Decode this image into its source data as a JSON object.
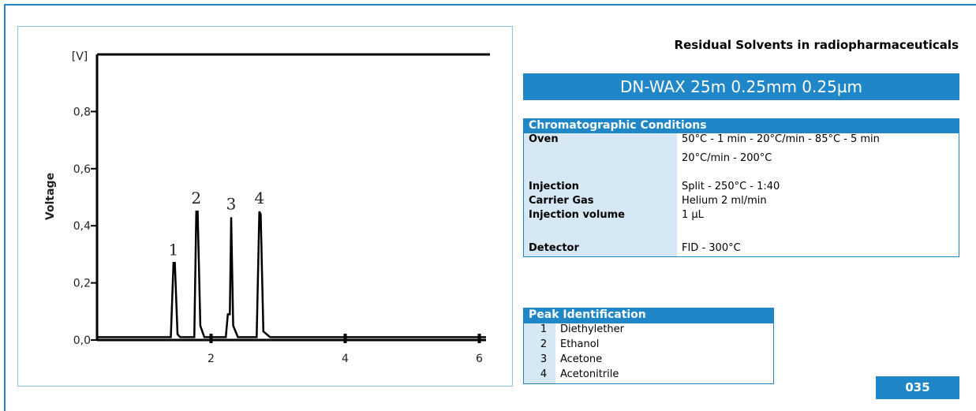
{
  "chart_data": {
    "type": "line",
    "y_unit": "[V]",
    "y_label": "Voltage",
    "x": [
      0.3,
      1.4,
      1.44,
      1.46,
      1.5,
      1.54,
      1.75,
      1.78,
      1.8,
      1.84,
      1.9,
      2.22,
      2.25,
      2.28,
      2.3,
      2.33,
      2.4,
      2.68,
      2.72,
      2.74,
      2.78,
      2.88,
      6.1
    ],
    "series": [
      {
        "color": "#000000",
        "values": [
          0.01,
          0.01,
          0.27,
          0.27,
          0.02,
          0.01,
          0.01,
          0.45,
          0.45,
          0.05,
          0.01,
          0.01,
          0.09,
          0.09,
          0.43,
          0.05,
          0.01,
          0.01,
          0.45,
          0.44,
          0.03,
          0.01,
          0.01
        ]
      }
    ],
    "annotations": [
      "1",
      "2",
      "3",
      "4"
    ],
    "xlim": [
      0.3,
      6.1
    ],
    "xticks": [
      2,
      4,
      6
    ],
    "ylim": [
      0,
      1.0
    ],
    "yticks": [
      {
        "value": 0,
        "label": "0,0"
      },
      {
        "value": 0.2,
        "label": "0,2"
      },
      {
        "value": 0.4,
        "label": "0,4"
      },
      {
        "value": 0.6,
        "label": "0,6"
      },
      {
        "value": 0.8,
        "label": "0,8"
      }
    ]
  },
  "header": {
    "title": "Residual Solvents in radiopharmaceuticals",
    "column": "DN-WAX  25m  0.25mm  0.25µm"
  },
  "conditions": {
    "title": "Chromatographic Conditions",
    "rows": [
      [
        "Oven",
        "50°C - 1 min - 20°C/min - 85°C - 5 min"
      ],
      [
        "",
        "20°C/min - 200°C"
      ],
      [
        "Injection",
        "Split - 250°C - 1:40"
      ],
      [
        "Carrier Gas",
        "Helium 2 ml/min"
      ],
      [
        "Injection volume",
        "1 µL"
      ],
      [
        "Detector",
        "FID - 300°C"
      ]
    ]
  },
  "peaks": {
    "title": "Peak Identification",
    "rows": [
      [
        "1",
        "Diethylether"
      ],
      [
        "2",
        "Ethanol"
      ],
      [
        "3",
        "Acetone"
      ],
      [
        "4",
        "Acetonitrile"
      ]
    ]
  },
  "code": "035"
}
